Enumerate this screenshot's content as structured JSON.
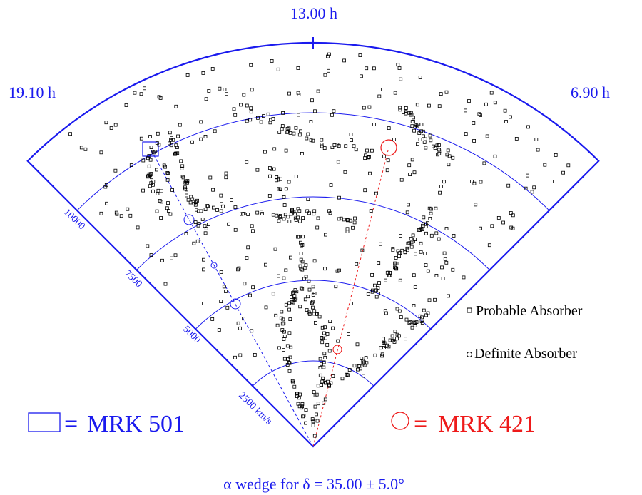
{
  "ra_labels": {
    "center": "13.00 h",
    "left": "19.10 h",
    "right": "6.90 h"
  },
  "radial_labels": [
    {
      "text": "2500 km/s",
      "velocity": 2500
    },
    {
      "text": "5000",
      "velocity": 5000
    },
    {
      "text": "7500",
      "velocity": 7500
    },
    {
      "text": "10000",
      "velocity": 10000
    }
  ],
  "legend": {
    "probable": "Probable Absorber",
    "definite": "Definite Absorber"
  },
  "sightlines": {
    "mrk501": {
      "eq": "=",
      "name": "MRK 501"
    },
    "mrk421": {
      "eq": "=",
      "name": "MRK 421"
    }
  },
  "caption": {
    "alpha": "α",
    "wedge_for": "wedge for",
    "delta": "δ",
    "eq": "=",
    "value": "35.00 ± 5.0°"
  },
  "colors": {
    "wedge": "#1a1aee",
    "mrk501": "#1a1aee",
    "mrk421": "#ee1a1a",
    "galaxy": "#000000"
  },
  "icons": {
    "probable": "small-square",
    "definite": "small-circle",
    "mrk501": "square",
    "mrk421": "circle"
  }
}
